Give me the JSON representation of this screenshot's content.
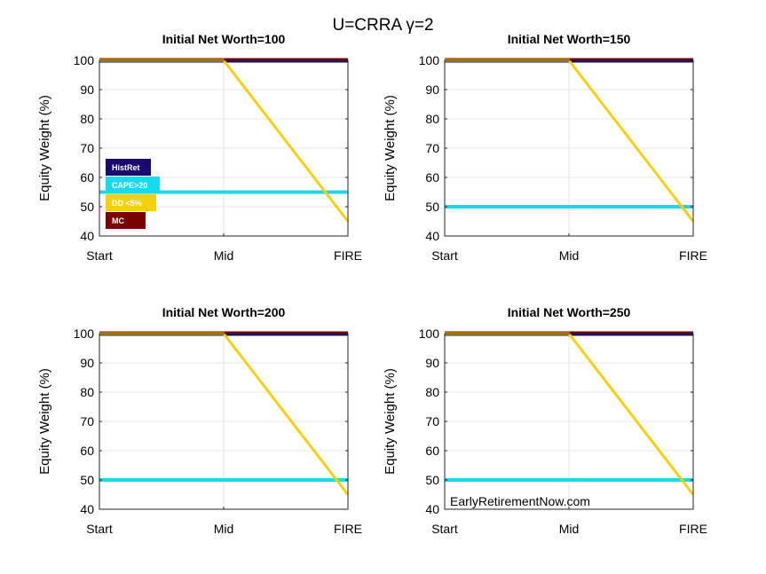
{
  "figure": {
    "suptitle": "U=CRRA γ=2",
    "watermark": "EarlyRetirementNow.com"
  },
  "colors": {
    "HistRet": "#1a0a6e",
    "CAPE>20": "#19d9ec",
    "DD <5%": "#f5cf10",
    "MC": "#7b0000",
    "grid": "#e6e6e6",
    "axis": "#262626"
  },
  "legend": {
    "placement": "left-middle of first subplot",
    "entries": [
      "HistRet",
      "CAPE>20",
      "DD <5%",
      "MC"
    ]
  },
  "chart_data": [
    {
      "type": "line",
      "title": "Initial Net Worth=100",
      "xlabel": "",
      "ylabel": "Equity Weight (%)",
      "categories": [
        "Start",
        "Mid",
        "FIRE"
      ],
      "ylim": [
        40,
        100
      ],
      "yticks": [
        40,
        50,
        60,
        70,
        80,
        90,
        100
      ],
      "grid": true,
      "series": [
        {
          "name": "HistRet",
          "x": [
            0,
            1,
            2
          ],
          "values": [
            100,
            100,
            100
          ]
        },
        {
          "name": "CAPE>20",
          "x": [
            0,
            1,
            2
          ],
          "values": [
            55,
            55,
            55
          ]
        },
        {
          "name": "DD <5%",
          "x": [
            0,
            1,
            2
          ],
          "values": [
            100,
            100,
            45
          ]
        },
        {
          "name": "MC",
          "x": [
            0,
            1,
            2
          ],
          "values": [
            100,
            100,
            100
          ]
        }
      ]
    },
    {
      "type": "line",
      "title": "Initial Net Worth=150",
      "xlabel": "",
      "ylabel": "Equity Weight (%)",
      "categories": [
        "Start",
        "Mid",
        "FIRE"
      ],
      "ylim": [
        40,
        100
      ],
      "yticks": [
        40,
        50,
        60,
        70,
        80,
        90,
        100
      ],
      "grid": true,
      "series": [
        {
          "name": "HistRet",
          "x": [
            0,
            1,
            2
          ],
          "values": [
            100,
            100,
            100
          ]
        },
        {
          "name": "CAPE>20",
          "x": [
            0,
            1,
            2
          ],
          "values": [
            50,
            50,
            50
          ]
        },
        {
          "name": "DD <5%",
          "x": [
            0,
            1,
            2
          ],
          "values": [
            100,
            100,
            45
          ]
        },
        {
          "name": "MC",
          "x": [
            0,
            1,
            2
          ],
          "values": [
            100,
            100,
            100
          ]
        }
      ]
    },
    {
      "type": "line",
      "title": "Initial Net Worth=200",
      "xlabel": "",
      "ylabel": "Equity Weight (%)",
      "categories": [
        "Start",
        "Mid",
        "FIRE"
      ],
      "ylim": [
        40,
        100
      ],
      "yticks": [
        40,
        50,
        60,
        70,
        80,
        90,
        100
      ],
      "grid": true,
      "series": [
        {
          "name": "HistRet",
          "x": [
            0,
            1,
            2
          ],
          "values": [
            100,
            100,
            100
          ]
        },
        {
          "name": "CAPE>20",
          "x": [
            0,
            1,
            2
          ],
          "values": [
            50,
            50,
            50
          ]
        },
        {
          "name": "DD <5%",
          "x": [
            0,
            1,
            2
          ],
          "values": [
            100,
            100,
            45
          ]
        },
        {
          "name": "MC",
          "x": [
            0,
            1,
            2
          ],
          "values": [
            100,
            100,
            100
          ]
        }
      ]
    },
    {
      "type": "line",
      "title": "Initial Net Worth=250",
      "xlabel": "",
      "ylabel": "Equity Weight (%)",
      "categories": [
        "Start",
        "Mid",
        "FIRE"
      ],
      "ylim": [
        40,
        100
      ],
      "yticks": [
        40,
        50,
        60,
        70,
        80,
        90,
        100
      ],
      "grid": true,
      "series": [
        {
          "name": "HistRet",
          "x": [
            0,
            1,
            2
          ],
          "values": [
            100,
            100,
            100
          ]
        },
        {
          "name": "CAPE>20",
          "x": [
            0,
            1,
            2
          ],
          "values": [
            50,
            50,
            50
          ]
        },
        {
          "name": "DD <5%",
          "x": [
            0,
            1,
            2
          ],
          "values": [
            100,
            100,
            45
          ]
        },
        {
          "name": "MC",
          "x": [
            0,
            1,
            2
          ],
          "values": [
            100,
            100,
            100
          ]
        }
      ]
    }
  ]
}
